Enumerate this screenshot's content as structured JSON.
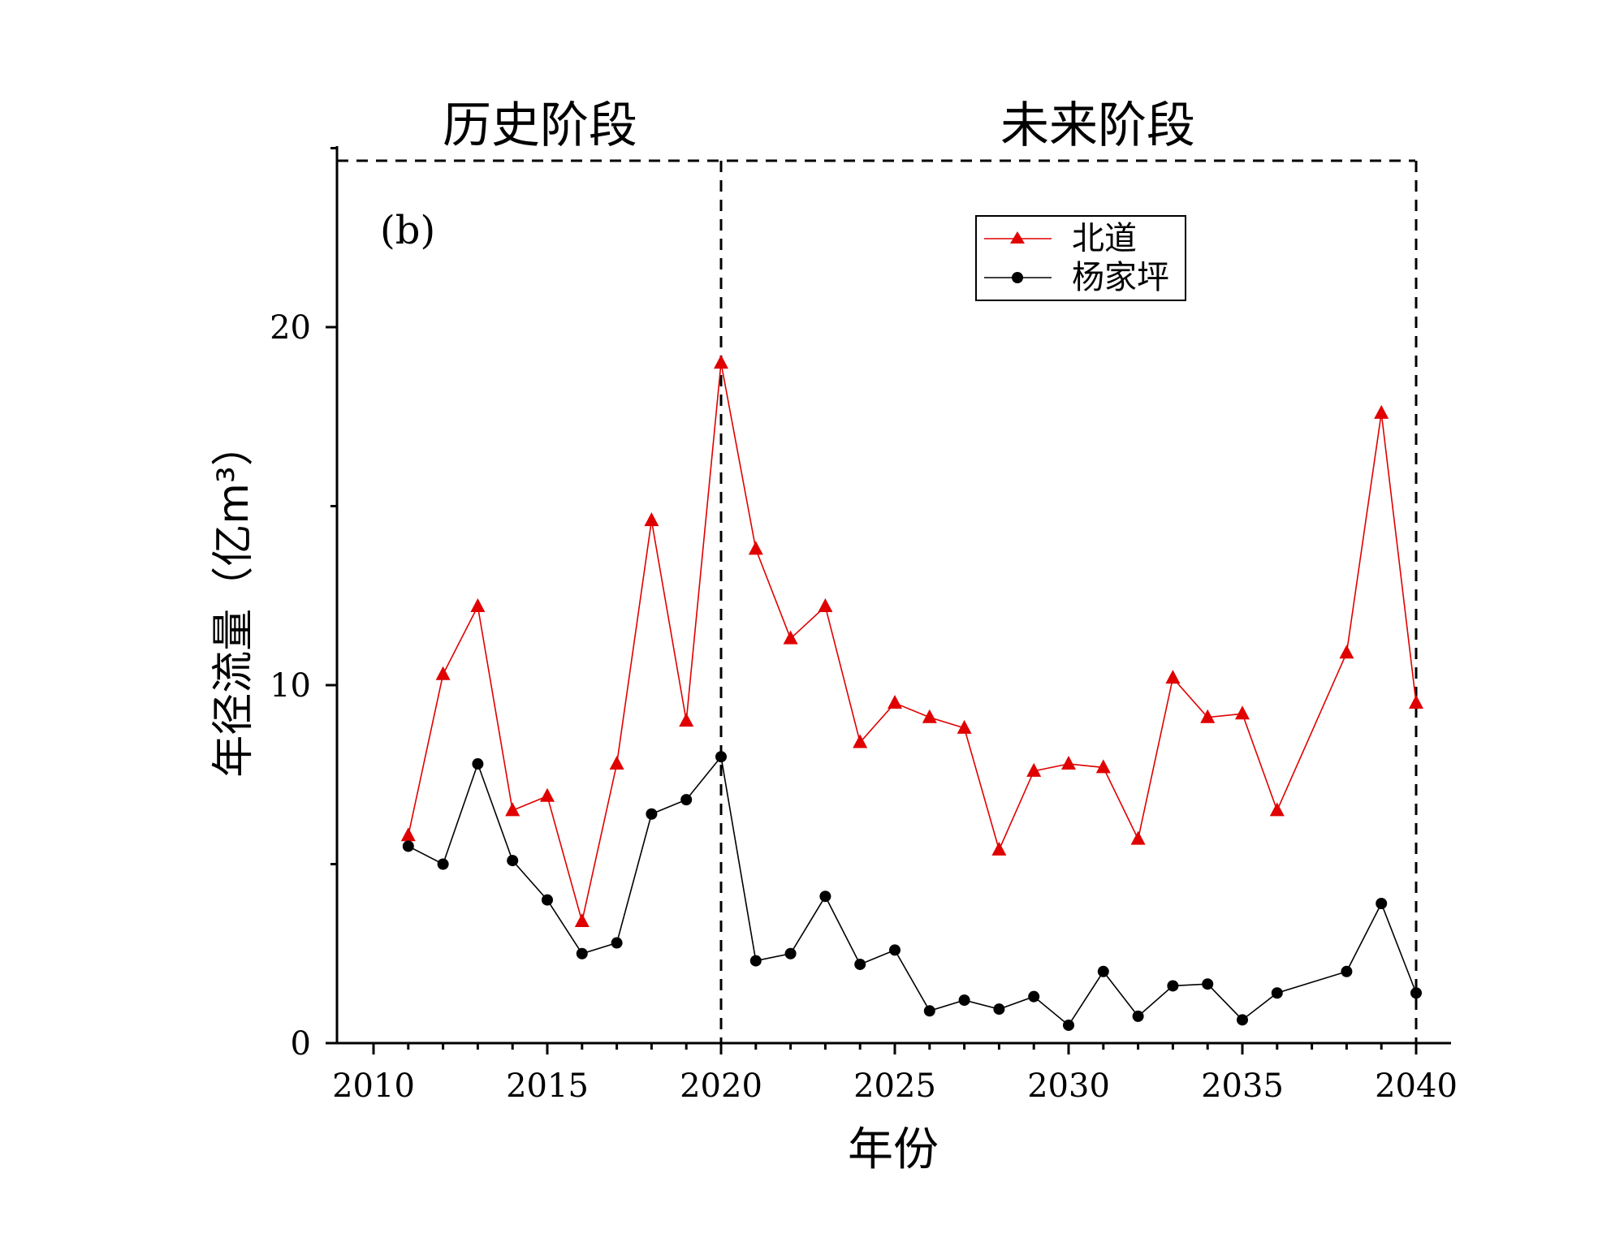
{
  "chart_data": {
    "type": "line",
    "panel_label": "(b)",
    "phase_labels": {
      "history": "历史阶段",
      "future": "未来阶段"
    },
    "xlabel": "年份",
    "ylabel": "年径流量（亿m³）",
    "xlim": [
      2009,
      2042
    ],
    "ylim": [
      0,
      25
    ],
    "x_ticks": [
      2010,
      2015,
      2020,
      2025,
      2030,
      2035,
      2040
    ],
    "y_ticks": [
      0,
      10,
      20
    ],
    "divider_x": [
      2020,
      2040
    ],
    "legend_placement": "top-right",
    "grid": false,
    "series": [
      {
        "name": "北道",
        "color": "#e00000",
        "marker": "triangle",
        "x": [
          2011,
          2012,
          2013,
          2014,
          2015,
          2016,
          2017,
          2018,
          2019,
          2020,
          2021,
          2022,
          2023,
          2024,
          2025,
          2026,
          2027,
          2028,
          2029,
          2030,
          2031,
          2032,
          2033,
          2034,
          2035,
          2036,
          2038,
          2039,
          2040
        ],
        "values": [
          5.8,
          10.3,
          12.2,
          6.5,
          6.9,
          3.4,
          7.8,
          14.6,
          9.0,
          19.0,
          13.8,
          11.3,
          12.2,
          8.4,
          9.5,
          9.1,
          8.8,
          5.4,
          7.6,
          7.8,
          7.7,
          5.7,
          10.2,
          9.1,
          9.2,
          6.5,
          10.9,
          17.6,
          9.5
        ]
      },
      {
        "name": "杨家坪",
        "color": "#000000",
        "marker": "circle",
        "x": [
          2011,
          2012,
          2013,
          2014,
          2015,
          2016,
          2017,
          2018,
          2019,
          2020,
          2021,
          2022,
          2023,
          2024,
          2025,
          2026,
          2027,
          2028,
          2029,
          2030,
          2031,
          2032,
          2033,
          2034,
          2035,
          2036,
          2038,
          2039,
          2040
        ],
        "values": [
          5.5,
          5.0,
          7.8,
          5.1,
          4.0,
          2.5,
          2.8,
          6.4,
          6.8,
          8.0,
          2.3,
          2.5,
          4.1,
          2.2,
          2.6,
          0.9,
          1.2,
          0.95,
          1.3,
          0.5,
          2.0,
          0.75,
          1.6,
          1.65,
          0.65,
          1.4,
          2.0,
          3.9,
          1.4
        ]
      }
    ]
  }
}
